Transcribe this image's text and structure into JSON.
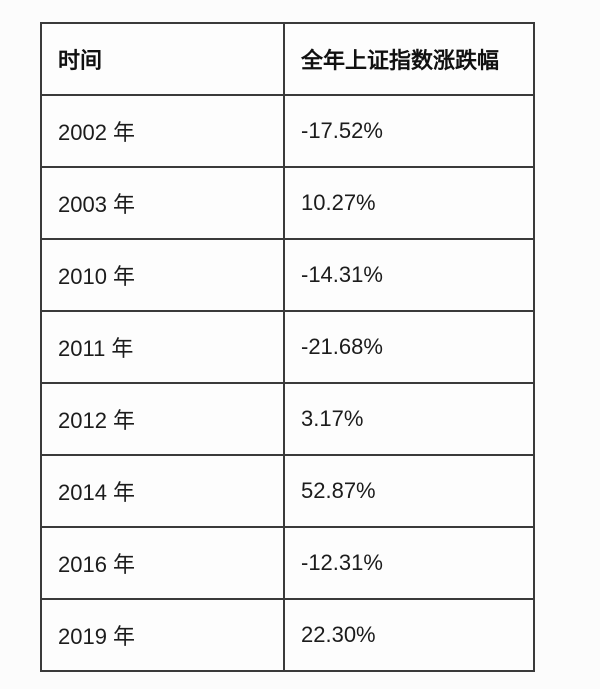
{
  "chart_data": {
    "type": "table",
    "title": "",
    "columns": [
      "时间",
      "全年上证指数涨跌幅"
    ],
    "categories": [
      "2002 年",
      "2003 年",
      "2010 年",
      "2011 年",
      "2012 年",
      "2014 年",
      "2016 年",
      "2019 年"
    ],
    "values": [
      -17.52,
      10.27,
      -14.31,
      -21.68,
      3.17,
      52.87,
      -12.31,
      22.3
    ],
    "value_unit": "percent"
  },
  "table": {
    "header": {
      "time_label": "时间",
      "change_label": "全年上证指数涨跌幅"
    },
    "rows": [
      {
        "year": "2002 年",
        "change": "-17.52%"
      },
      {
        "year": "2003 年",
        "change": "10.27%"
      },
      {
        "year": "2010 年",
        "change": "-14.31%"
      },
      {
        "year": "2011 年",
        "change": "-21.68%"
      },
      {
        "year": "2012 年",
        "change": "3.17%"
      },
      {
        "year": "2014 年",
        "change": "52.87%"
      },
      {
        "year": "2016 年",
        "change": "-12.31%"
      },
      {
        "year": "2019 年",
        "change": "22.30%"
      }
    ]
  },
  "colors": {
    "border": "#3a3a3a",
    "text": "#1c1c1c",
    "background": "#fcfcfc"
  }
}
